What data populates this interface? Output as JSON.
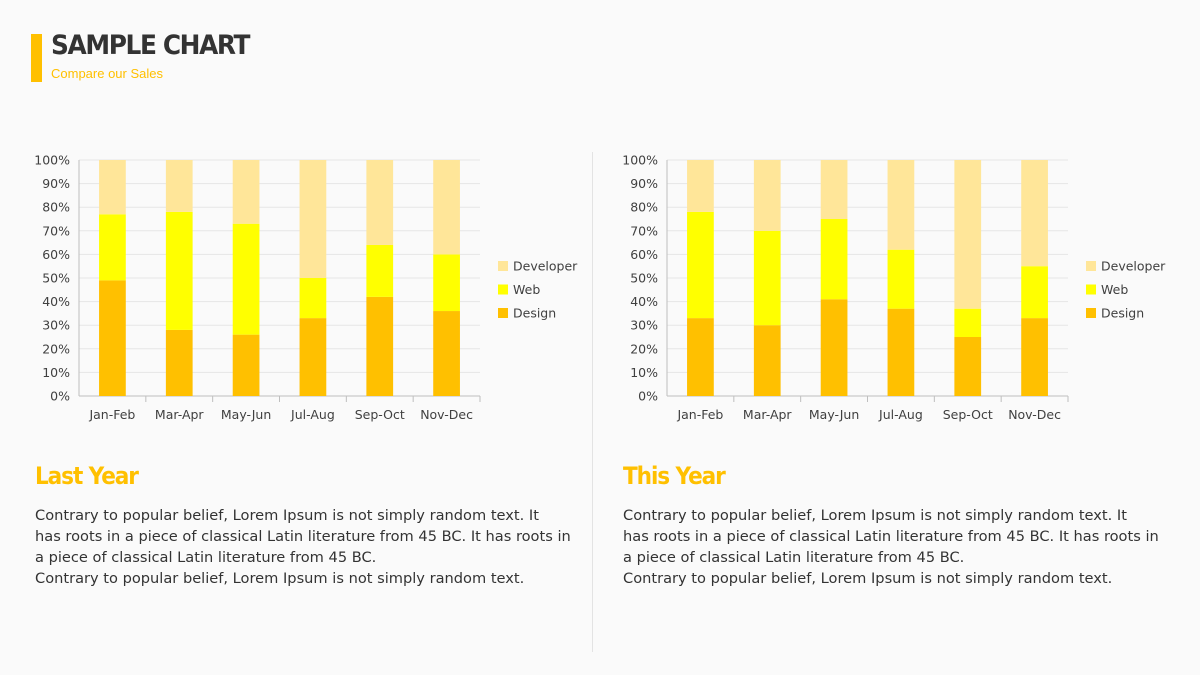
{
  "header": {
    "title": "SAMPLE CHART",
    "subtitle": "Compare our Sales",
    "accent_color": "#ffc000"
  },
  "sections": [
    {
      "title": "Last Year",
      "body_lines": [
        "Contrary to popular belief, Lorem Ipsum is not simply random text. It",
        "has roots in a piece of classical Latin literature from 45 BC. It has roots in",
        "a piece of classical Latin literature from 45 BC.",
        "Contrary to popular belief, Lorem Ipsum is not simply random text."
      ]
    },
    {
      "title": "This Year",
      "body_lines": [
        "Contrary to popular belief, Lorem Ipsum is not simply random text. It",
        "has roots in a piece of classical Latin literature from 45 BC. It has roots in",
        "a piece of classical Latin literature from 45 BC.",
        "Contrary to popular belief, Lorem Ipsum is not simply random text."
      ]
    }
  ],
  "chart_data": [
    {
      "type": "bar",
      "stacked": true,
      "categories": [
        "Jan-Feb",
        "Mar-Apr",
        "May-Jun",
        "Jul-Aug",
        "Sep-Oct",
        "Nov-Dec"
      ],
      "series": [
        {
          "name": "Design",
          "color": "#ffc000",
          "values": [
            49,
            28,
            26,
            33,
            42,
            36
          ]
        },
        {
          "name": "Web",
          "color": "#ffff00",
          "values": [
            28,
            50,
            47,
            17,
            22,
            24
          ]
        },
        {
          "name": "Developer",
          "color": "#ffe699",
          "values": [
            23,
            22,
            27,
            50,
            36,
            40
          ]
        }
      ],
      "yticks": [
        "0%",
        "10%",
        "20%",
        "30%",
        "40%",
        "50%",
        "60%",
        "70%",
        "80%",
        "90%",
        "100%"
      ],
      "ylim": [
        0,
        100
      ],
      "grid": true,
      "legend": "right"
    },
    {
      "type": "bar",
      "stacked": true,
      "categories": [
        "Jan-Feb",
        "Mar-Apr",
        "May-Jun",
        "Jul-Aug",
        "Sep-Oct",
        "Nov-Dec"
      ],
      "series": [
        {
          "name": "Design",
          "color": "#ffc000",
          "values": [
            33,
            30,
            41,
            37,
            25,
            33
          ]
        },
        {
          "name": "Web",
          "color": "#ffff00",
          "values": [
            45,
            40,
            34,
            25,
            12,
            22
          ]
        },
        {
          "name": "Developer",
          "color": "#ffe699",
          "values": [
            22,
            30,
            25,
            38,
            63,
            45
          ]
        }
      ],
      "yticks": [
        "0%",
        "10%",
        "20%",
        "30%",
        "40%",
        "50%",
        "60%",
        "70%",
        "80%",
        "90%",
        "100%"
      ],
      "ylim": [
        0,
        100
      ],
      "grid": true,
      "legend": "right"
    }
  ]
}
